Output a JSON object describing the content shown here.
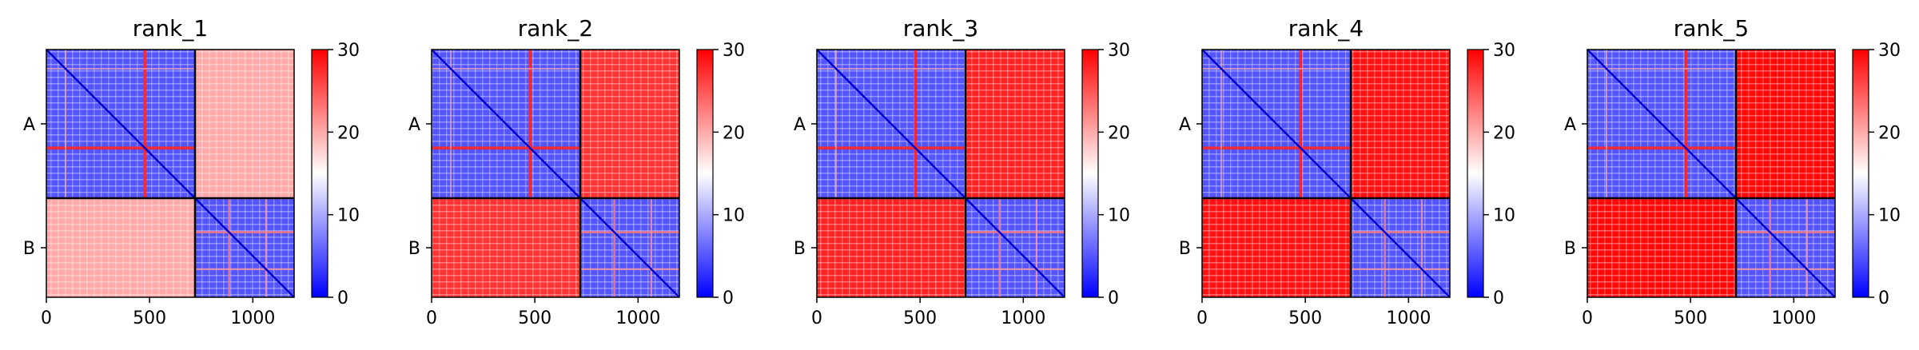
{
  "chart_data": {
    "type": "heatmap",
    "description_of_values": "Predicted aligned error matrices (PAE) for 5 model ranks",
    "colorscale": {
      "low": "#0000ff",
      "mid": "#ffffff",
      "high": "#ff0000"
    },
    "colorbar": {
      "range": [
        0,
        30
      ],
      "ticks": [
        "0",
        "10",
        "20",
        "30"
      ]
    },
    "x_axis": {
      "range": [
        0,
        1200
      ],
      "ticks": [
        0,
        500,
        1000
      ],
      "tick_labels": [
        "0",
        "500",
        "1000"
      ]
    },
    "y_axis": {
      "segment_labels": [
        "A",
        "B"
      ],
      "chain_boundary": 720,
      "total_length": 1200
    },
    "panels": [
      {
        "title": "rank_1",
        "inter_chain_error_level": 20,
        "intra_chain_error_level": 5
      },
      {
        "title": "rank_2",
        "inter_chain_error_level": 27,
        "intra_chain_error_level": 5
      },
      {
        "title": "rank_3",
        "inter_chain_error_level": 28,
        "intra_chain_error_level": 5
      },
      {
        "title": "rank_4",
        "inter_chain_error_level": 29,
        "intra_chain_error_level": 5
      },
      {
        "title": "rank_5",
        "inter_chain_error_level": 29.5,
        "intra_chain_error_level": 5
      }
    ],
    "grid": false
  }
}
